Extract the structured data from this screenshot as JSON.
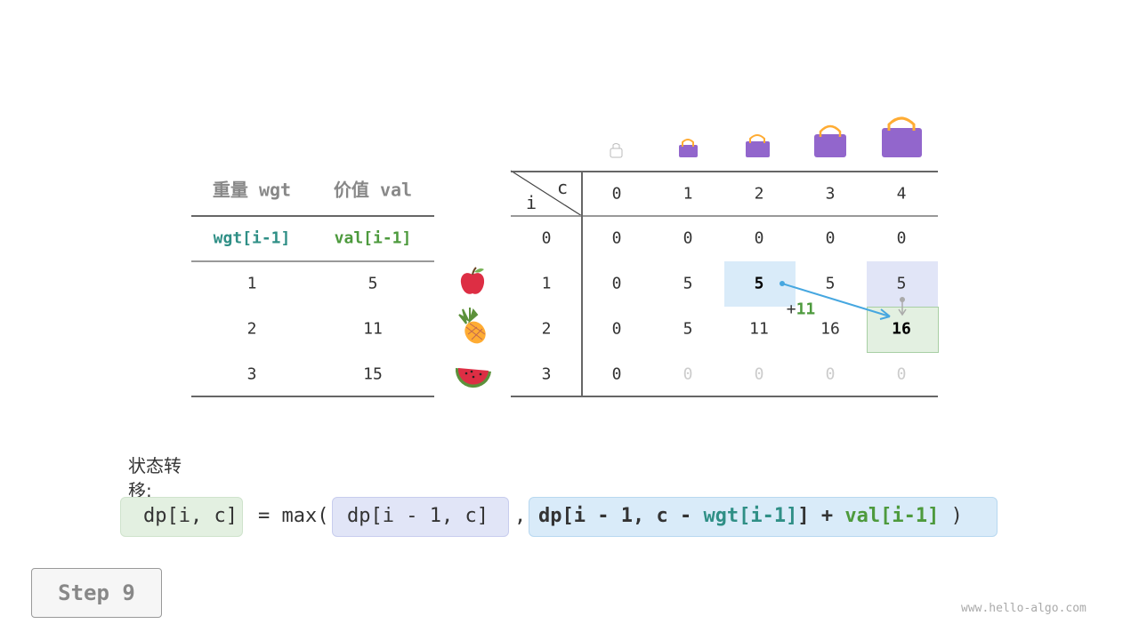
{
  "items_table": {
    "headers": [
      "重量 wgt",
      "价值 val"
    ],
    "subheaders": [
      "wgt[i-1]",
      "val[i-1]"
    ],
    "rows": [
      [
        "1",
        "5"
      ],
      [
        "2",
        "11"
      ],
      [
        "3",
        "15"
      ]
    ],
    "item_icons": [
      "apple-icon",
      "pineapple-icon",
      "watermelon-icon"
    ]
  },
  "dp_table": {
    "corner_row_label": "i",
    "corner_col_label": "c",
    "col_headers": [
      "0",
      "1",
      "2",
      "3",
      "4"
    ],
    "row_headers": [
      "0",
      "1",
      "2",
      "3"
    ],
    "rows": [
      [
        "0",
        "0",
        "0",
        "0",
        "0"
      ],
      [
        "0",
        "5",
        "5",
        "5",
        "5"
      ],
      [
        "0",
        "5",
        "11",
        "16",
        "16"
      ],
      [
        "0",
        "0",
        "0",
        "0",
        "0"
      ]
    ],
    "bag_icons": [
      "bag-empty-icon",
      "bag-icon",
      "bag-icon",
      "bag-icon",
      "bag-icon"
    ],
    "annotation": {
      "plus": "+",
      "value": "11"
    },
    "colors": {
      "blue_highlight": "#d9ebf9",
      "purple_highlight": "#e1e5f7",
      "green_highlight": "#e3f0e1",
      "arrow": "#46a7e0",
      "teal": "#2f8f86",
      "green": "#4d9a3d"
    }
  },
  "formula": {
    "label": "状态转移:",
    "lhs": "dp[i, c]",
    "eq": "= max(",
    "opt1": "dp[i - 1, c]",
    "comma": ",",
    "opt2_a": "dp[i - 1, c - ",
    "opt2_wgt": "wgt[i-1]",
    "opt2_b": "] + ",
    "opt2_val": "val[i-1]",
    "close": ")"
  },
  "step_button": "Step 9",
  "watermark": "www.hello-algo.com"
}
